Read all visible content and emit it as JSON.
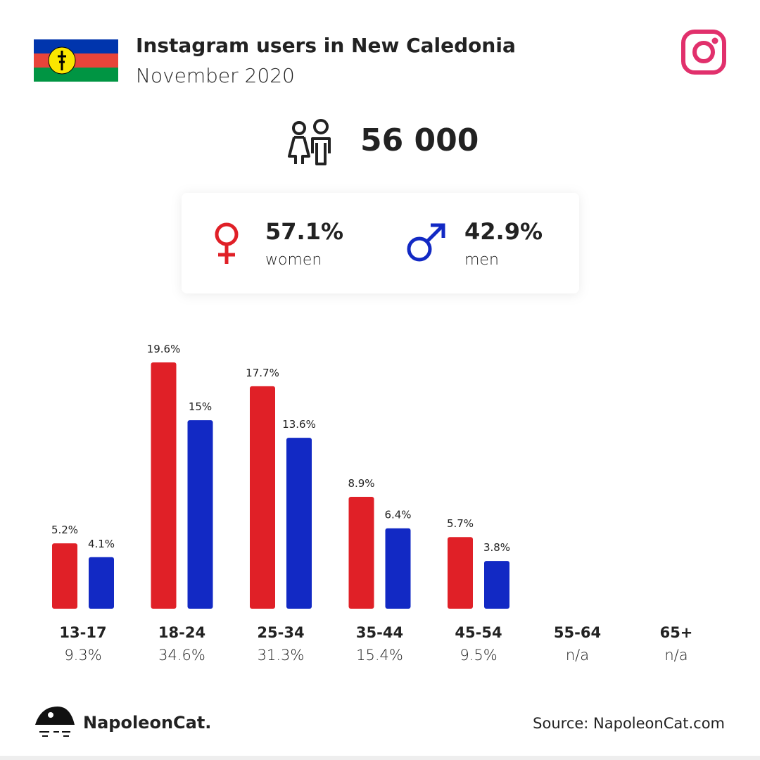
{
  "header": {
    "title": "Instagram users in New Caledonia",
    "subtitle": "November 2020"
  },
  "chart_data": {
    "type": "bar",
    "total_users": {
      "value": 56000,
      "label": "56 000"
    },
    "categories": [
      "13-17",
      "18-24",
      "25-34",
      "35-44",
      "45-54",
      "55-64",
      "65+"
    ],
    "totals": [
      {
        "value": 9.3,
        "label": "9.3%"
      },
      {
        "value": 34.6,
        "label": "34.6%"
      },
      {
        "value": 31.3,
        "label": "31.3%"
      },
      {
        "value": 15.4,
        "label": "15.4%"
      },
      {
        "value": 9.5,
        "label": "9.5%"
      },
      {
        "value": null,
        "label": "n/a"
      },
      {
        "value": null,
        "label": "n/a"
      }
    ],
    "series": [
      {
        "name": "women",
        "color": "#e02027",
        "share": {
          "value": 57.1,
          "label": "57.1%"
        },
        "values": [
          5.2,
          19.6,
          17.7,
          8.9,
          5.7,
          null,
          null
        ],
        "value_labels": [
          "5.2%",
          "19.6%",
          "17.7%",
          "8.9%",
          "5.7%",
          null,
          null
        ]
      },
      {
        "name": "men",
        "color": "#1229c4",
        "share": {
          "value": 42.9,
          "label": "42.9%"
        },
        "values": [
          4.1,
          15,
          13.6,
          6.4,
          3.8,
          null,
          null
        ],
        "value_labels": [
          "4.1%",
          "15%",
          "13.6%",
          "6.4%",
          "3.8%",
          null,
          null
        ]
      }
    ]
  },
  "footer": {
    "brand": "NapoleonCat.",
    "source": "Source: NapoleonCat.com"
  }
}
